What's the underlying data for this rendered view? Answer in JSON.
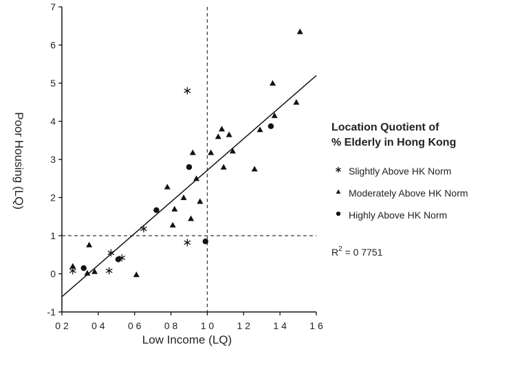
{
  "chart_data": {
    "type": "scatter",
    "xlabel": "Low Income (LQ)",
    "ylabel": "Poor Housing (LQ)",
    "xlim": [
      0.2,
      1.6
    ],
    "ylim": [
      -1,
      7
    ],
    "x_ticks": [
      {
        "value": 0.2,
        "label": "0 2"
      },
      {
        "value": 0.4,
        "label": "0 4"
      },
      {
        "value": 0.6,
        "label": "0 6"
      },
      {
        "value": 0.8,
        "label": "0 8"
      },
      {
        "value": 1.0,
        "label": "1 0"
      },
      {
        "value": 1.2,
        "label": "1 2"
      },
      {
        "value": 1.4,
        "label": "1 4"
      },
      {
        "value": 1.6,
        "label": "1 6"
      }
    ],
    "y_ticks": [
      {
        "value": -1,
        "label": "-1"
      },
      {
        "value": 0,
        "label": "0"
      },
      {
        "value": 1,
        "label": "1"
      },
      {
        "value": 2,
        "label": "2"
      },
      {
        "value": 3,
        "label": "3"
      },
      {
        "value": 4,
        "label": "4"
      },
      {
        "value": 5,
        "label": "5"
      },
      {
        "value": 6,
        "label": "6"
      },
      {
        "value": 7,
        "label": "7"
      }
    ],
    "reference_lines": {
      "x": 1.0,
      "y": 1.0
    },
    "trendline": {
      "x": [
        0.2,
        1.6
      ],
      "y": [
        -0.6,
        5.2
      ]
    },
    "r_squared": {
      "prefix": "R",
      "exponent": "2",
      "value": " = 0 7751"
    },
    "legend": {
      "title_lines": [
        "Location Quotient of",
        "% Elderly in Hong Kong"
      ],
      "placement": "right"
    },
    "series": [
      {
        "name": "Slightly Above HK Norm",
        "marker": "asterisk",
        "points": [
          {
            "x": 0.26,
            "y": 0.08
          },
          {
            "x": 0.46,
            "y": 0.08
          },
          {
            "x": 0.47,
            "y": 0.55
          },
          {
            "x": 0.53,
            "y": 0.42
          },
          {
            "x": 0.65,
            "y": 1.18
          },
          {
            "x": 0.89,
            "y": 4.8
          },
          {
            "x": 0.89,
            "y": 0.82
          }
        ]
      },
      {
        "name": "Moderately Above HK Norm",
        "marker": "triangle",
        "points": [
          {
            "x": 0.26,
            "y": 0.2
          },
          {
            "x": 0.34,
            "y": 0.02
          },
          {
            "x": 0.35,
            "y": 0.76
          },
          {
            "x": 0.38,
            "y": 0.06
          },
          {
            "x": 0.61,
            "y": -0.02
          },
          {
            "x": 0.78,
            "y": 2.28
          },
          {
            "x": 0.81,
            "y": 1.28
          },
          {
            "x": 0.82,
            "y": 1.7
          },
          {
            "x": 0.87,
            "y": 2.0
          },
          {
            "x": 0.91,
            "y": 1.45
          },
          {
            "x": 0.92,
            "y": 3.18
          },
          {
            "x": 0.94,
            "y": 2.5
          },
          {
            "x": 0.96,
            "y": 1.9
          },
          {
            "x": 1.02,
            "y": 3.18
          },
          {
            "x": 1.06,
            "y": 3.6
          },
          {
            "x": 1.08,
            "y": 3.8
          },
          {
            "x": 1.09,
            "y": 2.8
          },
          {
            "x": 1.12,
            "y": 3.65
          },
          {
            "x": 1.14,
            "y": 3.22
          },
          {
            "x": 1.26,
            "y": 2.75
          },
          {
            "x": 1.29,
            "y": 3.78
          },
          {
            "x": 1.36,
            "y": 5.0
          },
          {
            "x": 1.37,
            "y": 4.15
          },
          {
            "x": 1.49,
            "y": 4.5
          },
          {
            "x": 1.51,
            "y": 6.35
          }
        ]
      },
      {
        "name": "Highly Above HK Norm",
        "marker": "circle",
        "points": [
          {
            "x": 0.32,
            "y": 0.15
          },
          {
            "x": 0.51,
            "y": 0.38
          },
          {
            "x": 0.72,
            "y": 1.67
          },
          {
            "x": 0.9,
            "y": 2.8
          },
          {
            "x": 0.99,
            "y": 0.85
          },
          {
            "x": 1.35,
            "y": 3.87
          }
        ]
      }
    ]
  }
}
